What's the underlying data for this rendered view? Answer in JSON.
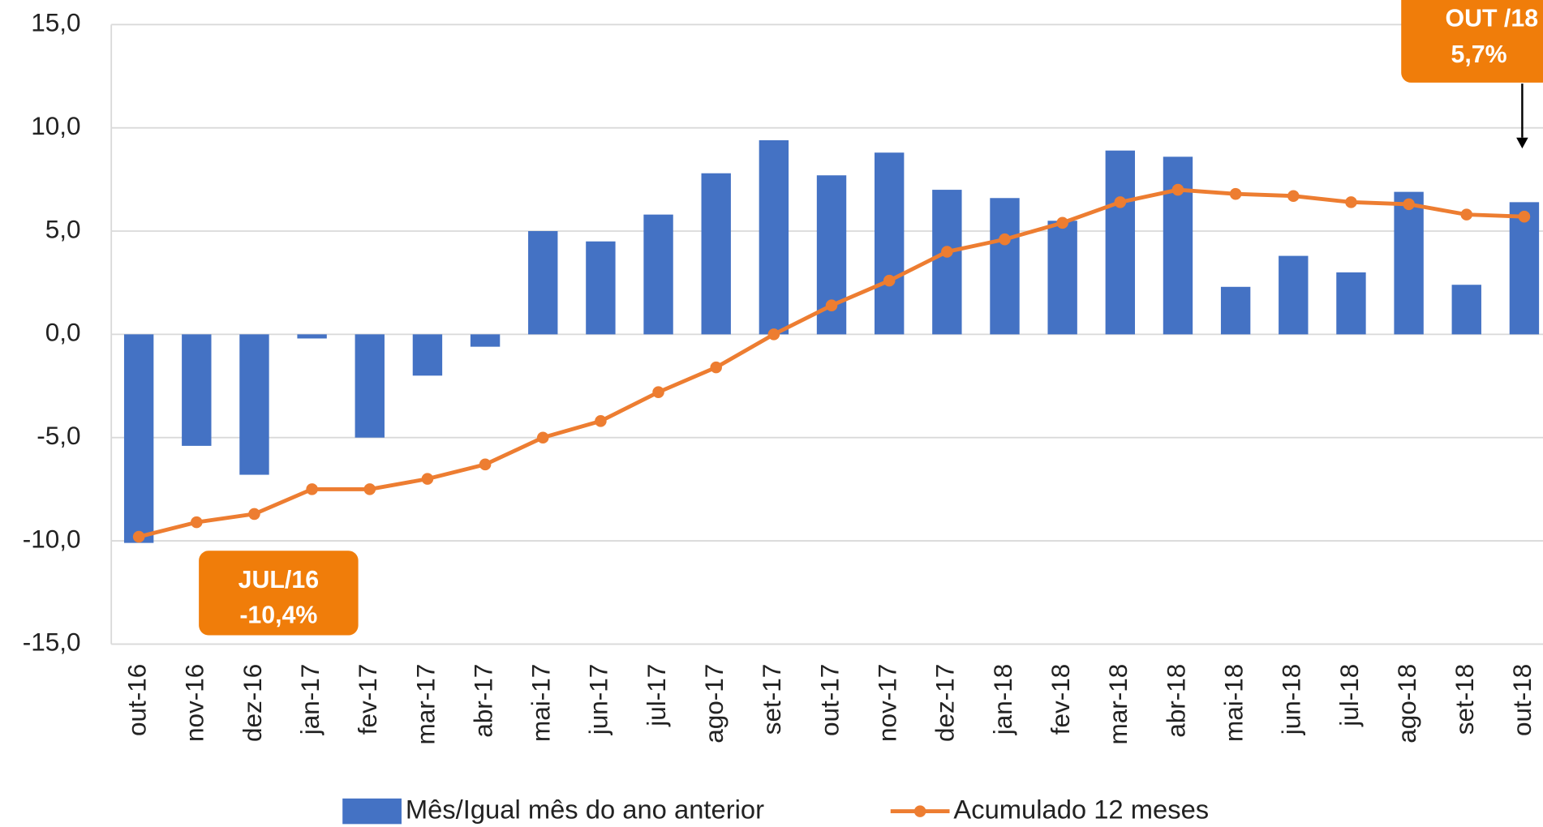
{
  "chart_data": {
    "type": "bar-line",
    "categories": [
      "out-16",
      "nov-16",
      "dez-16",
      "jan-17",
      "fev-17",
      "mar-17",
      "abr-17",
      "mai-17",
      "jun-17",
      "jul-17",
      "ago-17",
      "set-17",
      "out-17",
      "nov-17",
      "dez-17",
      "jan-18",
      "fev-18",
      "mar-18",
      "abr-18",
      "mai-18",
      "jun-18",
      "jul-18",
      "ago-18",
      "set-18",
      "out-18"
    ],
    "series": [
      {
        "name": "Mês/Igual mês do ano anterior",
        "type": "bar",
        "color": "#4472c4",
        "values": [
          -10.1,
          -5.4,
          -6.8,
          -0.2,
          -5.0,
          -2.0,
          -0.6,
          5.0,
          4.5,
          5.8,
          7.8,
          9.4,
          7.7,
          8.8,
          7.0,
          6.6,
          5.5,
          8.9,
          8.6,
          2.3,
          3.8,
          3.0,
          6.9,
          2.4,
          6.4
        ]
      },
      {
        "name": "Acumulado 12 meses",
        "type": "line",
        "color": "#ed7d31",
        "values": [
          -9.8,
          -9.1,
          -8.7,
          -7.5,
          -7.5,
          -7.0,
          -6.3,
          -5.0,
          -4.2,
          -2.8,
          -1.6,
          0.0,
          1.4,
          2.6,
          4.0,
          4.6,
          5.4,
          6.4,
          7.0,
          6.8,
          6.7,
          6.4,
          6.3,
          5.8,
          5.7
        ]
      }
    ],
    "ylim": [
      -15,
      15
    ],
    "yticks": [
      {
        "value": -15,
        "label": "-15,0"
      },
      {
        "value": -10,
        "label": "-10,0"
      },
      {
        "value": -5,
        "label": "-5,0"
      },
      {
        "value": 0,
        "label": "0,0"
      },
      {
        "value": 5,
        "label": "5,0"
      },
      {
        "value": 10,
        "label": "10,0"
      },
      {
        "value": 15,
        "label": "15,0"
      }
    ],
    "grid": true,
    "legend": "bottom",
    "annotations": [
      {
        "lines": [
          "JUL/16",
          "-10,4%"
        ],
        "color": "#f07d0a"
      },
      {
        "lines": [
          "OUT /18",
          "5,7%"
        ],
        "color": "#f07d0a"
      }
    ]
  }
}
